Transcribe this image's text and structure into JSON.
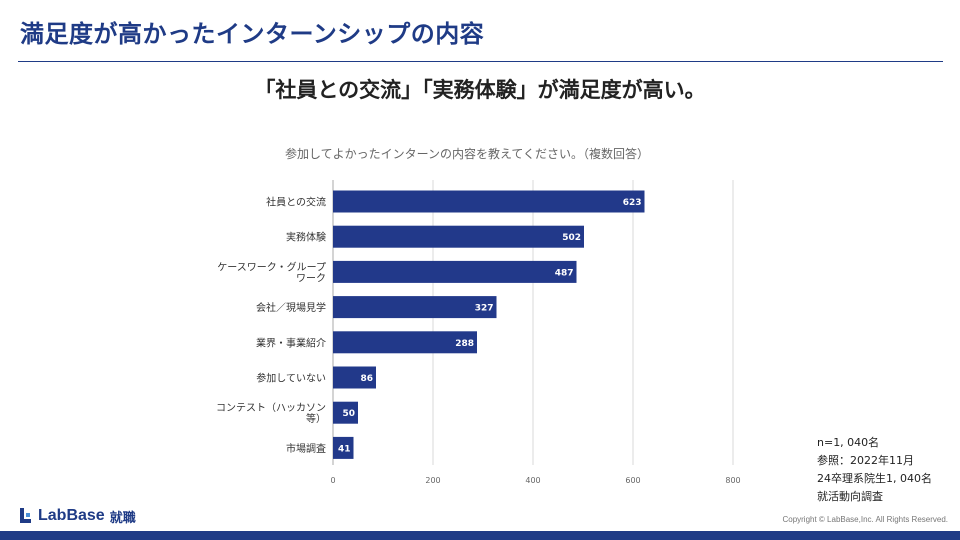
{
  "header": {
    "title": "満足度が高かったインターンシップの内容",
    "subtitle": "「社員との交流」「実務体験」が満足度が高い。"
  },
  "colors": {
    "brand": "#1f3b86",
    "bar": "#22398a",
    "grid": "#d9d9d9"
  },
  "chart_data": {
    "type": "bar",
    "orientation": "horizontal",
    "title": "参加してよかったインターンの内容を教えてください。（複数回答）",
    "categories": [
      [
        "社員との交流"
      ],
      [
        "実務体験"
      ],
      [
        "ケースワーク・グループ",
        "ワーク"
      ],
      [
        "会社／現場見学"
      ],
      [
        "業界・事業紹介"
      ],
      [
        "参加していない"
      ],
      [
        "コンテスト（ハッカソン",
        "等）"
      ],
      [
        "市場調査"
      ]
    ],
    "values": [
      623,
      502,
      487,
      327,
      288,
      86,
      50,
      41
    ],
    "xlim": [
      0,
      800
    ],
    "xticks": [
      0,
      200,
      400,
      600,
      800
    ],
    "grid": true,
    "legend": "none"
  },
  "notes": {
    "sample": "n=1, 040名",
    "reference": "参照：2022年11月",
    "respondents": "24卒理系院生1, 040名",
    "survey": "就活動向調査"
  },
  "footer": {
    "logo_text": "LabBase",
    "logo_sub": "就職",
    "copyright": "Copyright ©  LabBase,Inc. All Rights Reserved."
  }
}
